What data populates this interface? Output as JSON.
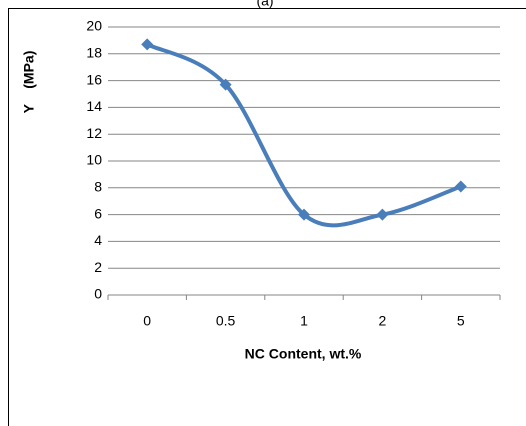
{
  "chart_data": {
    "type": "line",
    "title": "(a)",
    "x_label": "NC Content, wt.%",
    "y_label": "Y    (MPa)",
    "categories": [
      "0",
      "0.5",
      "1",
      "2",
      "5"
    ],
    "series": [
      {
        "name": "Y",
        "color": "#4a7ebb",
        "values": [
          18.7,
          15.7,
          6.0,
          6.0,
          8.1
        ]
      }
    ],
    "ylim": [
      0,
      20
    ],
    "yticks": [
      0,
      2,
      4,
      6,
      8,
      10,
      12,
      14,
      16,
      18,
      20
    ],
    "grid": true,
    "smooth": true
  }
}
